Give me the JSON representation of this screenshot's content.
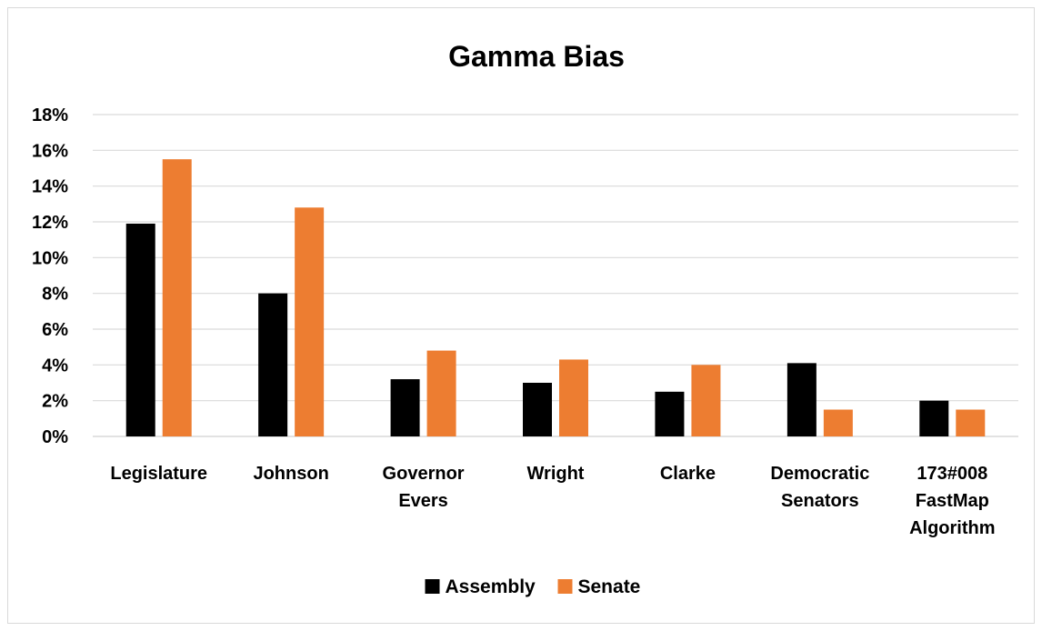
{
  "chart_data": {
    "type": "bar",
    "title": "Gamma Bias",
    "xlabel": "",
    "ylabel": "",
    "categories": [
      [
        "Legislature"
      ],
      [
        "Johnson"
      ],
      [
        "Governor",
        "Evers"
      ],
      [
        "Wright"
      ],
      [
        "Clarke"
      ],
      [
        "Democratic",
        "Senators"
      ],
      [
        "173#008",
        "FastMap",
        "Algorithm"
      ]
    ],
    "series": [
      {
        "name": "Assembly",
        "color": "#000000",
        "values": [
          11.9,
          8.0,
          3.2,
          3.0,
          2.5,
          4.1,
          2.0
        ]
      },
      {
        "name": "Senate",
        "color": "#ed7d31",
        "values": [
          15.5,
          12.8,
          4.8,
          4.3,
          4.0,
          1.5,
          1.5
        ]
      }
    ],
    "ylim": [
      0,
      18
    ],
    "yticks": [
      0,
      2,
      4,
      6,
      8,
      10,
      12,
      14,
      16,
      18
    ],
    "ytick_suffix": "%",
    "grid": true,
    "grid_color": "#d9d9d9",
    "legend_position": "bottom"
  }
}
